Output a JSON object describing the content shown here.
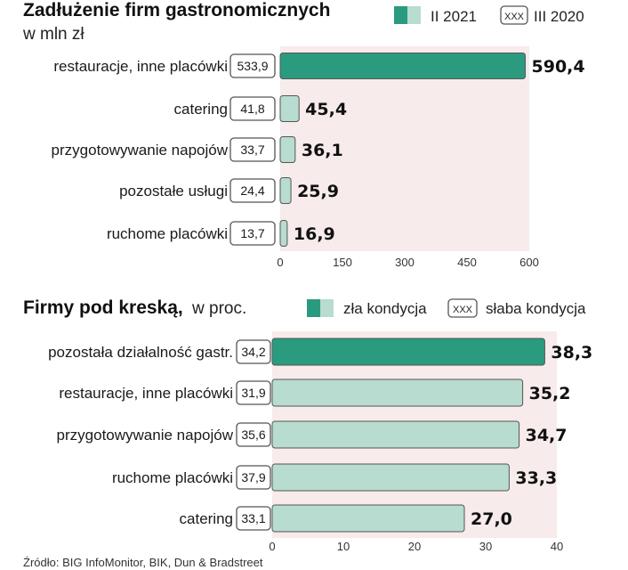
{
  "colors": {
    "accent_dark": "#2a9b7e",
    "accent_light": "#b8dccf",
    "plot_bg": "#f7ebeb",
    "box_border": "#555555"
  },
  "source": "Źródło: BIG InfoMonitor, BIK, Dun & Bradstreet",
  "chart_data": [
    {
      "type": "bar",
      "orientation": "horizontal",
      "title": "Zadłużenie firm gastronomicznych",
      "subtitle": "w mln zł",
      "legend": {
        "position": "top-right",
        "items": [
          "II 2021",
          "III 2020"
        ],
        "box_text": "XXX"
      },
      "categories": [
        "restauracje, inne placówki",
        "catering",
        "przygotowywanie napojów",
        "pozostałe usługi",
        "ruchome placówki"
      ],
      "series": [
        {
          "name": "II 2021",
          "values": [
            590.4,
            45.4,
            36.1,
            25.9,
            16.9
          ],
          "labels": [
            "590,4",
            "45,4",
            "36,1",
            "25,9",
            "16,9"
          ]
        },
        {
          "name": "III 2020",
          "values": [
            533.9,
            41.8,
            33.7,
            24.4,
            13.7
          ],
          "labels": [
            "533,9",
            "41,8",
            "33,7",
            "24,4",
            "13,7"
          ]
        }
      ],
      "highlight_index": 0,
      "xlim": [
        0,
        600
      ],
      "ticks": [
        0,
        150,
        300,
        450,
        600
      ],
      "tick_labels": [
        "0",
        "150",
        "300",
        "450",
        "600"
      ]
    },
    {
      "type": "bar",
      "orientation": "horizontal",
      "title": "Firmy pod kreską,",
      "subtitle": "w proc.",
      "legend": {
        "position": "top-right",
        "items": [
          "zła kondycja",
          "słaba kondycja"
        ],
        "box_text": "XXX"
      },
      "categories": [
        "pozostała działalność gastr.",
        "restauracje, inne placówki",
        "przygotowywanie napojów",
        "ruchome placówki",
        "catering"
      ],
      "series": [
        {
          "name": "zła kondycja",
          "values": [
            38.3,
            35.2,
            34.7,
            33.3,
            27.0
          ],
          "labels": [
            "38,3",
            "35,2",
            "34,7",
            "33,3",
            "27,0"
          ]
        },
        {
          "name": "słaba kondycja",
          "values": [
            34.2,
            31.9,
            35.6,
            37.9,
            33.1
          ],
          "labels": [
            "34,2",
            "31,9",
            "35,6",
            "37,9",
            "33,1"
          ]
        }
      ],
      "highlight_index": 0,
      "xlim": [
        0,
        40
      ],
      "ticks": [
        0,
        10,
        20,
        30,
        40
      ],
      "tick_labels": [
        "0",
        "10",
        "20",
        "30",
        "40"
      ]
    }
  ]
}
